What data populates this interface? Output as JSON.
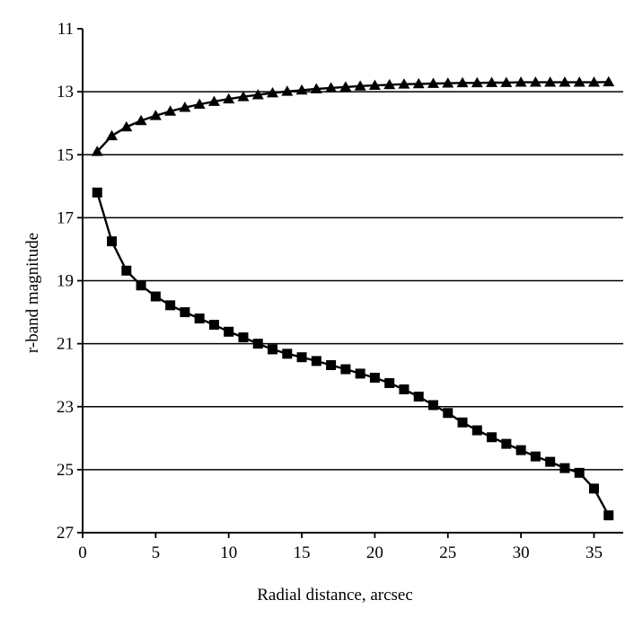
{
  "chart_data": {
    "type": "line",
    "title": "",
    "xlabel": "Radial distance, arcsec",
    "ylabel": "r-band magnitude",
    "xlim": [
      0,
      37
    ],
    "ylim": [
      27,
      11
    ],
    "y_inverted": true,
    "xticks": [
      0,
      5,
      10,
      15,
      20,
      25,
      30,
      35
    ],
    "yticks": [
      11,
      13,
      15,
      17,
      19,
      21,
      23,
      25,
      27
    ],
    "grid": "horizontal",
    "legend": "none",
    "colors": {
      "line": "#000000",
      "grid": "#000000",
      "background": "#ffffff"
    },
    "x": [
      1,
      2,
      3,
      4,
      5,
      6,
      7,
      8,
      9,
      10,
      11,
      12,
      13,
      14,
      15,
      16,
      17,
      18,
      19,
      20,
      21,
      22,
      23,
      24,
      25,
      26,
      27,
      28,
      29,
      30,
      31,
      32,
      33,
      34,
      35,
      36
    ],
    "series": [
      {
        "marker": "triangle",
        "values": [
          14.9,
          14.4,
          14.12,
          13.92,
          13.76,
          13.62,
          13.5,
          13.4,
          13.31,
          13.23,
          13.16,
          13.1,
          13.04,
          12.99,
          12.95,
          12.91,
          12.88,
          12.85,
          12.82,
          12.8,
          12.78,
          12.76,
          12.75,
          12.74,
          12.73,
          12.72,
          12.72,
          12.71,
          12.71,
          12.7,
          12.7,
          12.7,
          12.7,
          12.7,
          12.7,
          12.69
        ]
      },
      {
        "marker": "square",
        "values": [
          16.2,
          17.75,
          18.68,
          19.15,
          19.5,
          19.78,
          20.0,
          20.2,
          20.4,
          20.62,
          20.8,
          21.0,
          21.18,
          21.32,
          21.43,
          21.55,
          21.68,
          21.81,
          21.95,
          22.08,
          22.25,
          22.45,
          22.68,
          22.95,
          23.2,
          23.5,
          23.75,
          23.97,
          24.18,
          24.38,
          24.58,
          24.75,
          24.95,
          25.1,
          25.6,
          26.45
        ]
      }
    ]
  }
}
